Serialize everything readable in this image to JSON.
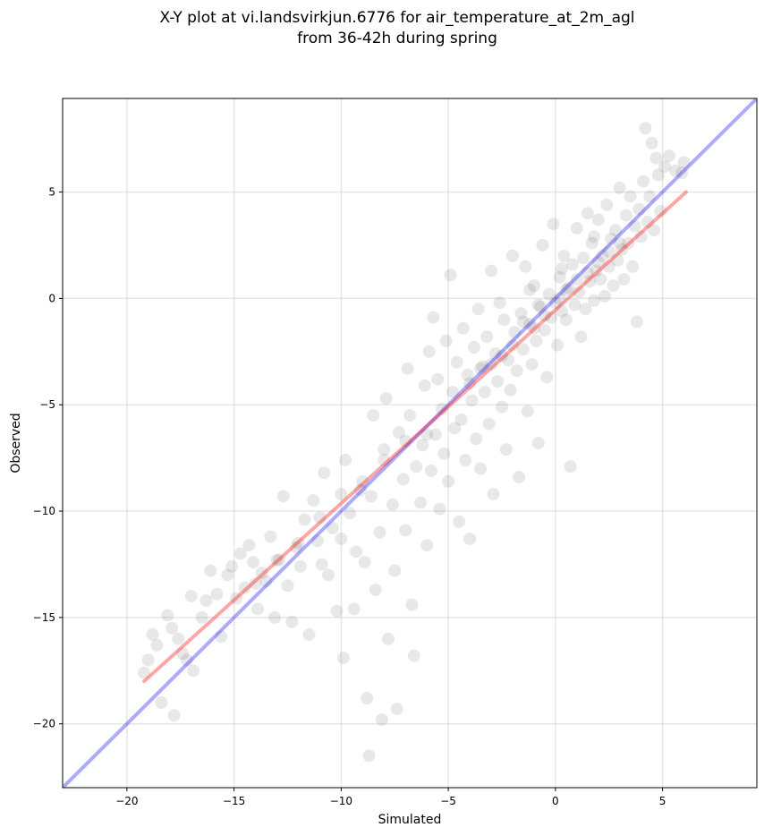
{
  "chart_data": {
    "type": "scatter",
    "title": "X-Y plot at vi.landsvirkjun.6776 for air_temperature_at_2m_agl",
    "subtitle": "from 36-42h during spring",
    "xlabel": "Simulated",
    "ylabel": "Observed",
    "xlim": [
      -23.0,
      9.4
    ],
    "ylim": [
      -23.0,
      9.4
    ],
    "xticks": [
      -20,
      -15,
      -10,
      -5,
      0,
      5
    ],
    "yticks": [
      -20,
      -15,
      -10,
      -5,
      0,
      5
    ],
    "xtick_labels": [
      "−20",
      "−15",
      "−10",
      "−5",
      "0",
      "5"
    ],
    "ytick_labels": [
      "−20",
      "−15",
      "−10",
      "−5",
      "0",
      "5"
    ],
    "grid": true,
    "point_color": "#000000",
    "identity_line": {
      "x": [
        -23.0,
        9.4
      ],
      "y": [
        -23.0,
        9.4
      ],
      "color": "#0000ff"
    },
    "fit_line": {
      "x": [
        -19.2,
        6.1
      ],
      "y": [
        -18.0,
        5.0
      ],
      "color": "#ff0000"
    },
    "points": [
      [
        -19.2,
        -17.6
      ],
      [
        -19.0,
        -17.0
      ],
      [
        -18.8,
        -15.8
      ],
      [
        -18.6,
        -16.3
      ],
      [
        -18.4,
        -19.0
      ],
      [
        -18.1,
        -14.9
      ],
      [
        -17.9,
        -15.5
      ],
      [
        -17.8,
        -19.6
      ],
      [
        -17.6,
        -16.0
      ],
      [
        -17.4,
        -16.7
      ],
      [
        -17.2,
        -17.0
      ],
      [
        -17.0,
        -14.0
      ],
      [
        -16.9,
        -17.5
      ],
      [
        -16.5,
        -15.0
      ],
      [
        -16.3,
        -14.2
      ],
      [
        -16.1,
        -12.8
      ],
      [
        -15.8,
        -13.9
      ],
      [
        -15.6,
        -15.9
      ],
      [
        -15.3,
        -13.0
      ],
      [
        -15.1,
        -12.6
      ],
      [
        -14.9,
        -14.1
      ],
      [
        -14.7,
        -12.0
      ],
      [
        -14.5,
        -13.6
      ],
      [
        -14.3,
        -11.6
      ],
      [
        -14.1,
        -12.4
      ],
      [
        -13.9,
        -14.6
      ],
      [
        -13.7,
        -12.9
      ],
      [
        -13.5,
        -13.3
      ],
      [
        -13.3,
        -11.2
      ],
      [
        -13.1,
        -15.0
      ],
      [
        -12.9,
        -12.3
      ],
      [
        -12.7,
        -9.3
      ],
      [
        -12.5,
        -13.5
      ],
      [
        -12.3,
        -15.2
      ],
      [
        -12.1,
        -11.7
      ],
      [
        -11.9,
        -12.6
      ],
      [
        -11.7,
        -10.4
      ],
      [
        -11.5,
        -15.8
      ],
      [
        -11.3,
        -9.5
      ],
      [
        -11.1,
        -11.4
      ],
      [
        -10.9,
        -12.5
      ],
      [
        -10.8,
        -8.2
      ],
      [
        -10.6,
        -13.0
      ],
      [
        -10.4,
        -10.8
      ],
      [
        -10.2,
        -14.7
      ],
      [
        -10.0,
        -11.3
      ],
      [
        -9.9,
        -16.9
      ],
      [
        -9.8,
        -7.6
      ],
      [
        -9.6,
        -10.1
      ],
      [
        -9.4,
        -14.6
      ],
      [
        -9.3,
        -11.9
      ],
      [
        -9.1,
        -9.0
      ],
      [
        -8.9,
        -12.4
      ],
      [
        -8.8,
        -18.8
      ],
      [
        -8.7,
        -21.5
      ],
      [
        -8.6,
        -9.3
      ],
      [
        -8.5,
        -5.5
      ],
      [
        -8.4,
        -13.7
      ],
      [
        -8.2,
        -11.0
      ],
      [
        -8.1,
        -19.8
      ],
      [
        -8.0,
        -7.1
      ],
      [
        -7.9,
        -4.7
      ],
      [
        -7.8,
        -16.0
      ],
      [
        -7.6,
        -9.7
      ],
      [
        -7.5,
        -12.8
      ],
      [
        -7.4,
        -19.3
      ],
      [
        -7.3,
        -6.3
      ],
      [
        -7.1,
        -8.5
      ],
      [
        -7.0,
        -10.9
      ],
      [
        -6.9,
        -3.3
      ],
      [
        -6.8,
        -5.5
      ],
      [
        -6.7,
        -14.4
      ],
      [
        -6.6,
        -16.8
      ],
      [
        -6.5,
        -7.9
      ],
      [
        -6.3,
        -9.6
      ],
      [
        -6.2,
        -6.9
      ],
      [
        -6.1,
        -4.1
      ],
      [
        -6.0,
        -11.6
      ],
      [
        -5.9,
        -2.5
      ],
      [
        -5.8,
        -8.1
      ],
      [
        -5.7,
        -0.9
      ],
      [
        -5.6,
        -6.4
      ],
      [
        -5.5,
        -3.8
      ],
      [
        -5.4,
        -9.9
      ],
      [
        -5.3,
        -5.2
      ],
      [
        -5.2,
        -7.3
      ],
      [
        -5.1,
        -2.0
      ],
      [
        -5.0,
        -8.6
      ],
      [
        -4.9,
        1.1
      ],
      [
        -4.8,
        -4.4
      ],
      [
        -4.7,
        -6.1
      ],
      [
        -4.6,
        -3.0
      ],
      [
        -4.5,
        -10.5
      ],
      [
        -4.4,
        -5.7
      ],
      [
        -4.3,
        -1.4
      ],
      [
        -4.2,
        -7.6
      ],
      [
        -4.1,
        -3.6
      ],
      [
        -4.0,
        -11.3
      ],
      [
        -3.9,
        -4.8
      ],
      [
        -3.8,
        -2.3
      ],
      [
        -3.7,
        -6.6
      ],
      [
        -3.6,
        -0.5
      ],
      [
        -3.5,
        -8.0
      ],
      [
        -3.4,
        -3.2
      ],
      [
        -3.3,
        -4.4
      ],
      [
        -3.2,
        -1.8
      ],
      [
        -3.1,
        -5.9
      ],
      [
        -3.0,
        1.3
      ],
      [
        -2.9,
        -9.2
      ],
      [
        -2.8,
        -2.6
      ],
      [
        -2.7,
        -3.9
      ],
      [
        -2.6,
        -0.2
      ],
      [
        -2.5,
        -5.1
      ],
      [
        -2.4,
        -1.0
      ],
      [
        -2.3,
        -7.1
      ],
      [
        -2.2,
        -2.9
      ],
      [
        -2.1,
        -4.3
      ],
      [
        -2.0,
        2.0
      ],
      [
        -1.9,
        -1.6
      ],
      [
        -1.8,
        -3.4
      ],
      [
        -1.7,
        -8.4
      ],
      [
        -1.6,
        -0.7
      ],
      [
        -1.5,
        -2.4
      ],
      [
        -1.4,
        1.5
      ],
      [
        -1.3,
        -5.3
      ],
      [
        -1.2,
        -1.2
      ],
      [
        -1.1,
        -3.1
      ],
      [
        -1.0,
        0.6
      ],
      [
        -0.9,
        -2.0
      ],
      [
        -0.8,
        -6.8
      ],
      [
        -0.7,
        -0.4
      ],
      [
        -0.6,
        2.5
      ],
      [
        -0.5,
        -1.5
      ],
      [
        -0.4,
        -3.7
      ],
      [
        -0.3,
        0.2
      ],
      [
        -0.2,
        -0.9
      ],
      [
        -0.1,
        3.5
      ],
      [
        0.0,
        -0.2
      ],
      [
        0.1,
        -2.2
      ],
      [
        0.2,
        1.0
      ],
      [
        0.3,
        -0.6
      ],
      [
        0.4,
        2.0
      ],
      [
        0.5,
        -1.0
      ],
      [
        0.6,
        0.5
      ],
      [
        0.7,
        -7.9
      ],
      [
        0.8,
        1.6
      ],
      [
        0.9,
        -0.3
      ],
      [
        1.0,
        3.3
      ],
      [
        1.1,
        0.3
      ],
      [
        1.2,
        -1.8
      ],
      [
        1.3,
        1.9
      ],
      [
        1.4,
        -0.5
      ],
      [
        1.5,
        4.0
      ],
      [
        1.6,
        0.8
      ],
      [
        1.7,
        2.6
      ],
      [
        1.8,
        -0.1
      ],
      [
        1.9,
        1.3
      ],
      [
        2.0,
        3.7
      ],
      [
        2.1,
        0.9
      ],
      [
        2.2,
        2.0
      ],
      [
        2.3,
        0.1
      ],
      [
        2.4,
        4.4
      ],
      [
        2.5,
        1.5
      ],
      [
        2.6,
        2.8
      ],
      [
        2.7,
        0.6
      ],
      [
        2.8,
        3.2
      ],
      [
        2.9,
        1.8
      ],
      [
        3.0,
        5.2
      ],
      [
        3.1,
        2.3
      ],
      [
        3.2,
        0.9
      ],
      [
        3.3,
        3.9
      ],
      [
        3.4,
        2.6
      ],
      [
        3.5,
        4.8
      ],
      [
        3.6,
        1.5
      ],
      [
        3.7,
        3.4
      ],
      [
        3.8,
        -1.1
      ],
      [
        3.9,
        4.2
      ],
      [
        4.0,
        2.9
      ],
      [
        4.1,
        5.5
      ],
      [
        4.2,
        8.0
      ],
      [
        4.3,
        3.6
      ],
      [
        4.4,
        4.8
      ],
      [
        4.5,
        7.3
      ],
      [
        4.6,
        3.2
      ],
      [
        4.7,
        6.6
      ],
      [
        4.8,
        5.8
      ],
      [
        4.9,
        4.1
      ],
      [
        5.1,
        6.2
      ],
      [
        5.3,
        6.7
      ],
      [
        5.6,
        6.0
      ],
      [
        5.9,
        5.9
      ],
      [
        6.0,
        6.4
      ],
      [
        -1.0,
        -1.4
      ],
      [
        -0.5,
        -0.8
      ],
      [
        0.5,
        0.4
      ],
      [
        1.5,
        1.2
      ],
      [
        -2.0,
        -2.2
      ],
      [
        -3.0,
        -3.1
      ],
      [
        -4.0,
        -4.0
      ],
      [
        -1.5,
        -1.1
      ],
      [
        -0.8,
        -0.3
      ],
      [
        0.2,
        0.0
      ],
      [
        1.0,
        0.9
      ],
      [
        2.0,
        1.7
      ],
      [
        3.0,
        2.6
      ],
      [
        -2.5,
        -2.7
      ],
      [
        -3.5,
        -3.3
      ],
      [
        -6.0,
        -6.4
      ],
      [
        -7.0,
        -6.7
      ],
      [
        -8.0,
        -7.6
      ],
      [
        -9.0,
        -8.6
      ],
      [
        -10.0,
        -9.2
      ],
      [
        -11.0,
        -10.3
      ],
      [
        -12.0,
        -11.5
      ],
      [
        -13.0,
        -12.3
      ],
      [
        -14.0,
        -13.4
      ],
      [
        -1.2,
        0.4
      ],
      [
        0.3,
        1.4
      ],
      [
        1.8,
        2.9
      ],
      [
        2.5,
        2.2
      ]
    ]
  }
}
